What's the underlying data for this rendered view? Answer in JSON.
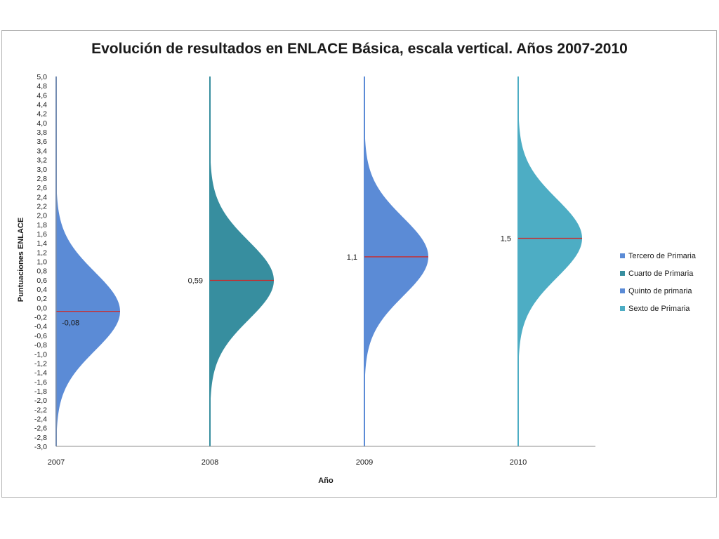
{
  "chart_data": {
    "type": "area",
    "title": "Evolución de resultados en ENLACE Básica, escala vertical. Años 2007-2010",
    "xlabel": "Año",
    "ylabel": "Puntuaciones ENLACE",
    "ylim": [
      -3.0,
      5.0
    ],
    "ytick_step": 0.2,
    "yticks": [
      "5,0",
      "4,8",
      "4,6",
      "4,4",
      "4,2",
      "4,0",
      "3,8",
      "3,6",
      "3,4",
      "3,2",
      "3,0",
      "2,8",
      "2,6",
      "2,4",
      "2,2",
      "2,0",
      "1,8",
      "1,6",
      "1,4",
      "1,2",
      "1,0",
      "0,8",
      "0,6",
      "0,4",
      "0,2",
      "0,0",
      "-0,2",
      "-0,4",
      "-0,6",
      "-0,8",
      "-1,0",
      "-1,2",
      "-1,4",
      "-1,6",
      "-1,8",
      "-2,0",
      "-2,2",
      "-2,4",
      "-2,6",
      "-2,8",
      "-3,0"
    ],
    "categories": [
      "2007",
      "2008",
      "2009",
      "2010"
    ],
    "grid": false,
    "legend_position": "right",
    "series": [
      {
        "name": "Tercero de Primaria",
        "category": "2007",
        "mean": -0.08,
        "mean_label": "-0,08",
        "sd": 0.85,
        "color": "#5b8bd6"
      },
      {
        "name": "Cuarto de Primaria",
        "category": "2008",
        "mean": 0.59,
        "mean_label": "0,59",
        "sd": 0.85,
        "color": "#378e9f"
      },
      {
        "name": "Quinto de primaria",
        "category": "2009",
        "mean": 1.1,
        "mean_label": "1,1",
        "sd": 0.85,
        "color": "#5b8bd6"
      },
      {
        "name": "Sexto de Primaria",
        "category": "2010",
        "mean": 1.5,
        "mean_label": "1,5",
        "sd": 0.85,
        "color": "#4dadc4"
      }
    ],
    "mean_line_color": "#cc2a2a",
    "axis_color": "#8c8c8c"
  }
}
